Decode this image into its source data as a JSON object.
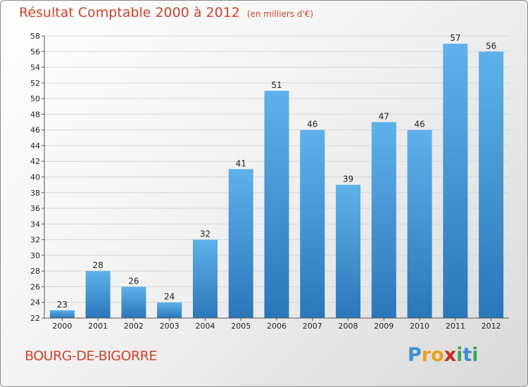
{
  "title": {
    "main": "Résultat Comptable 2000 à 2012",
    "sub": "(en milliers d'€)"
  },
  "town": "BOURG-DE-BIGORRE",
  "logo": {
    "text": "Proxiti",
    "letters": [
      "P",
      "r",
      "o",
      "x",
      "i",
      "t",
      "i"
    ],
    "colors": [
      "#3b8fd6",
      "#e8a21b",
      "#e8a21b",
      "#cc2b1d",
      "#3aa655",
      "#3b8fd6",
      "#3aa655"
    ]
  },
  "colors": {
    "bar_top": "#5eb1ea",
    "bar_bottom": "#2a77b9",
    "accent": "#d0432a"
  },
  "chart_data": {
    "type": "bar",
    "title": "Résultat Comptable 2000 à 2012 (en milliers d'€)",
    "xlabel": "",
    "ylabel": "",
    "categories": [
      "2000",
      "2001",
      "2002",
      "2003",
      "2004",
      "2005",
      "2006",
      "2007",
      "2008",
      "2009",
      "2010",
      "2011",
      "2012"
    ],
    "values": [
      23,
      28,
      26,
      24,
      32,
      41,
      51,
      46,
      39,
      47,
      46,
      57,
      56
    ],
    "ylim": [
      22,
      58
    ],
    "yticks": [
      22,
      24,
      26,
      28,
      30,
      32,
      34,
      36,
      38,
      40,
      42,
      44,
      46,
      48,
      50,
      52,
      54,
      56,
      58
    ],
    "grid": true
  }
}
